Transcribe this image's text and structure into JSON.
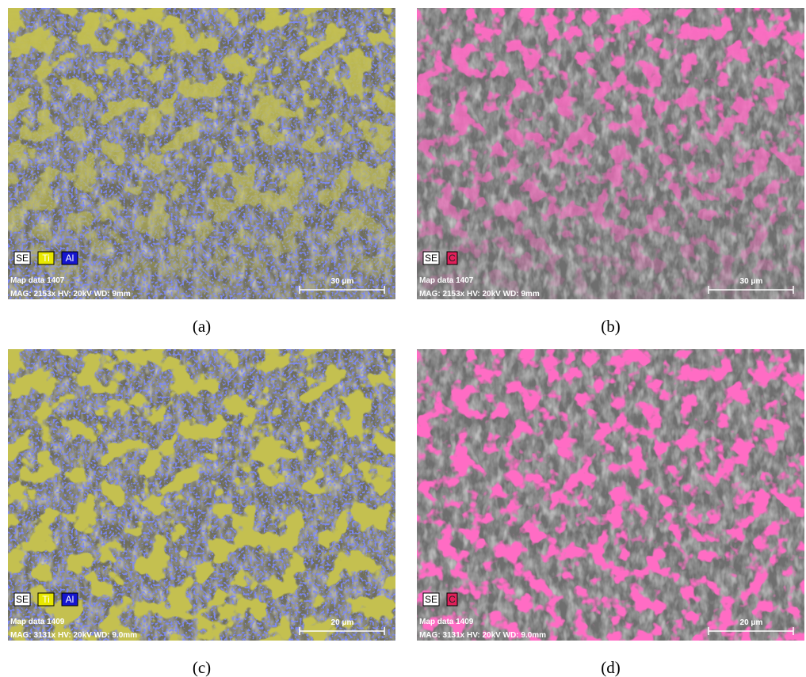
{
  "panels": [
    {
      "caption": "(a)",
      "tags": [
        "SE",
        "Ti",
        "Al"
      ],
      "map": "Map data 1407",
      "info": "MAG: 2153x  HV: 20kV  WD: 9mm",
      "scale": "30 μm"
    },
    {
      "caption": "(b)",
      "tags": [
        "SE",
        "C"
      ],
      "map": "Map data 1407",
      "info": "MAG: 2153x  HV: 20kV  WD: 9mm",
      "scale": "30 μm"
    },
    {
      "caption": "(c)",
      "tags": [
        "SE",
        "Ti",
        "Al"
      ],
      "map": "Map data 1409",
      "info": "MAG: 3131x  HV: 20kV  WD: 9.0mm",
      "scale": "20 μm"
    },
    {
      "caption": "(d)",
      "tags": [
        "SE",
        "C"
      ],
      "map": "Map data 1409",
      "info": "MAG: 3131x  HV: 20kV  WD: 9.0mm",
      "scale": "20 μm"
    }
  ]
}
